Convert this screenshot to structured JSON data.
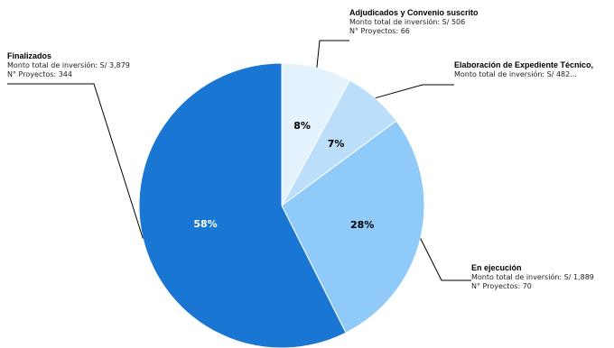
{
  "chart_data": {
    "type": "pie",
    "slices": [
      {
        "category": "Adjudicados y Convenio suscrito",
        "percent": 8,
        "percent_label": "8%",
        "monto_label": "Monto total de inversión: S/ 506",
        "proyectos_label": "N° Proyectos: 66",
        "color": "#e3f2fd",
        "label_text_color": "#000000"
      },
      {
        "category": "Elaboración de Expediente Técnico,",
        "percent": 7,
        "percent_label": "7%",
        "monto_label": "Monto total de inversión: S/ 482...",
        "proyectos_label": "",
        "color": "#bbdefb",
        "label_text_color": "#000000"
      },
      {
        "category": "En ejecución",
        "percent": 28,
        "percent_label": "28%",
        "monto_label": "Monto total de inversión: S/ 1,889",
        "proyectos_label": "N° Proyectos: 70",
        "color": "#90caf9",
        "label_text_color": "#000000"
      },
      {
        "category": "Finalizados",
        "percent": 58,
        "percent_label": "58%",
        "monto_label": "Monto total de inversión: S/ 3,879",
        "proyectos_label": "N° Proyectos: 344",
        "color": "#1976d2",
        "label_text_color": "#ffffff"
      }
    ],
    "start_angle_deg": 0,
    "direction": "clockwise"
  }
}
